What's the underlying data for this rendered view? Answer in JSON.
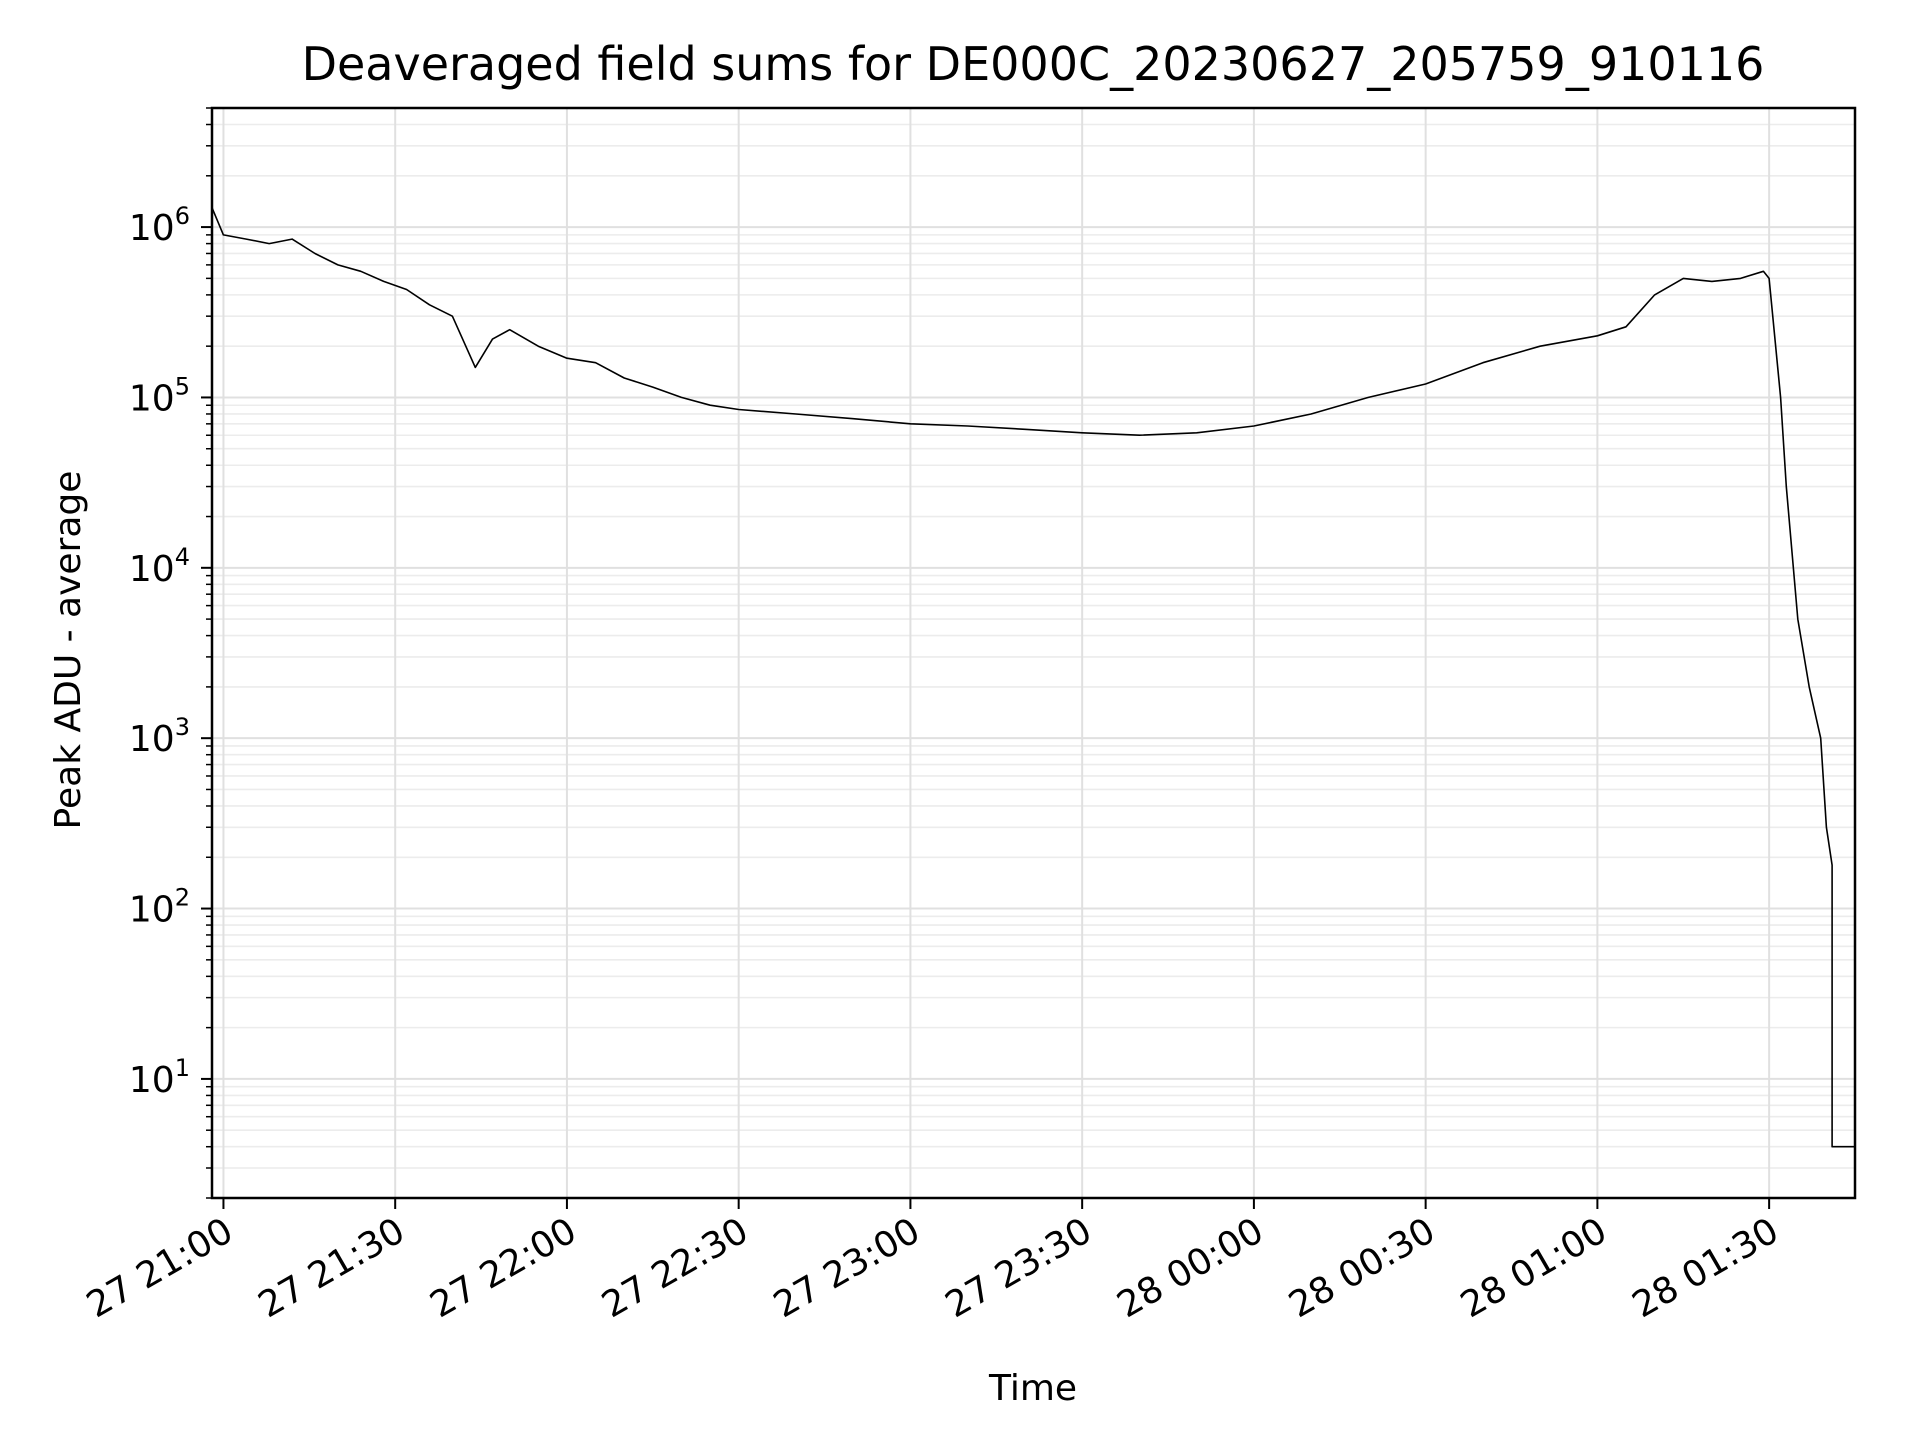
{
  "chart_data": {
    "type": "line",
    "title": "Deaveraged field sums for DE000C_20230627_205759_910116",
    "xlabel": "Time",
    "ylabel": "Peak ADU - average",
    "yscale": "log",
    "grid": true,
    "ylim": [
      2,
      5000000
    ],
    "xlim": [
      "2023-06-27 20:58",
      "2023-06-28 01:45"
    ],
    "y_ticks": [
      {
        "base": "10",
        "exp": "1",
        "value": 10
      },
      {
        "base": "10",
        "exp": "2",
        "value": 100
      },
      {
        "base": "10",
        "exp": "3",
        "value": 1000
      },
      {
        "base": "10",
        "exp": "4",
        "value": 10000
      },
      {
        "base": "10",
        "exp": "5",
        "value": 100000
      },
      {
        "base": "10",
        "exp": "6",
        "value": 1000000
      }
    ],
    "x_ticks": [
      {
        "label": "27 21:00",
        "value": "2023-06-27 21:00"
      },
      {
        "label": "27 21:30",
        "value": "2023-06-27 21:30"
      },
      {
        "label": "27 22:00",
        "value": "2023-06-27 22:00"
      },
      {
        "label": "27 22:30",
        "value": "2023-06-27 22:30"
      },
      {
        "label": "27 23:00",
        "value": "2023-06-27 23:00"
      },
      {
        "label": "27 23:30",
        "value": "2023-06-27 23:30"
      },
      {
        "label": "28 00:00",
        "value": "2023-06-28 00:00"
      },
      {
        "label": "28 00:30",
        "value": "2023-06-28 00:30"
      },
      {
        "label": "28 01:00",
        "value": "2023-06-28 01:00"
      },
      {
        "label": "28 01:30",
        "value": "2023-06-28 01:30"
      }
    ],
    "series": [
      {
        "color": "#000000",
        "points": [
          [
            "2023-06-27 20:58",
            1300000
          ],
          [
            "2023-06-27 21:00",
            900000
          ],
          [
            "2023-06-27 21:04",
            850000
          ],
          [
            "2023-06-27 21:08",
            800000
          ],
          [
            "2023-06-27 21:12",
            850000
          ],
          [
            "2023-06-27 21:16",
            700000
          ],
          [
            "2023-06-27 21:20",
            600000
          ],
          [
            "2023-06-27 21:24",
            550000
          ],
          [
            "2023-06-27 21:28",
            480000
          ],
          [
            "2023-06-27 21:32",
            430000
          ],
          [
            "2023-06-27 21:36",
            350000
          ],
          [
            "2023-06-27 21:40",
            300000
          ],
          [
            "2023-06-27 21:44",
            150000
          ],
          [
            "2023-06-27 21:47",
            220000
          ],
          [
            "2023-06-27 21:50",
            250000
          ],
          [
            "2023-06-27 21:55",
            200000
          ],
          [
            "2023-06-27 22:00",
            170000
          ],
          [
            "2023-06-27 22:05",
            160000
          ],
          [
            "2023-06-27 22:10",
            130000
          ],
          [
            "2023-06-27 22:15",
            115000
          ],
          [
            "2023-06-27 22:20",
            100000
          ],
          [
            "2023-06-27 22:25",
            90000
          ],
          [
            "2023-06-27 22:30",
            85000
          ],
          [
            "2023-06-27 22:40",
            80000
          ],
          [
            "2023-06-27 22:50",
            75000
          ],
          [
            "2023-06-27 23:00",
            70000
          ],
          [
            "2023-06-27 23:10",
            68000
          ],
          [
            "2023-06-27 23:20",
            65000
          ],
          [
            "2023-06-27 23:30",
            62000
          ],
          [
            "2023-06-27 23:40",
            60000
          ],
          [
            "2023-06-27 23:50",
            62000
          ],
          [
            "2023-06-28 00:00",
            68000
          ],
          [
            "2023-06-28 00:10",
            80000
          ],
          [
            "2023-06-28 00:20",
            100000
          ],
          [
            "2023-06-28 00:30",
            120000
          ],
          [
            "2023-06-28 00:40",
            160000
          ],
          [
            "2023-06-28 00:50",
            200000
          ],
          [
            "2023-06-28 01:00",
            230000
          ],
          [
            "2023-06-28 01:05",
            260000
          ],
          [
            "2023-06-28 01:10",
            400000
          ],
          [
            "2023-06-28 01:15",
            500000
          ],
          [
            "2023-06-28 01:20",
            480000
          ],
          [
            "2023-06-28 01:25",
            500000
          ],
          [
            "2023-06-28 01:29",
            550000
          ],
          [
            "2023-06-28 01:30",
            500000
          ],
          [
            "2023-06-28 01:32",
            100000
          ],
          [
            "2023-06-28 01:33",
            30000
          ],
          [
            "2023-06-28 01:35",
            5000
          ],
          [
            "2023-06-28 01:37",
            2000
          ],
          [
            "2023-06-28 01:39",
            1000
          ],
          [
            "2023-06-28 01:40",
            300
          ],
          [
            "2023-06-28 01:41",
            180
          ],
          [
            "2023-06-28 01:41",
            4
          ],
          [
            "2023-06-28 01:45",
            4
          ]
        ]
      }
    ]
  }
}
